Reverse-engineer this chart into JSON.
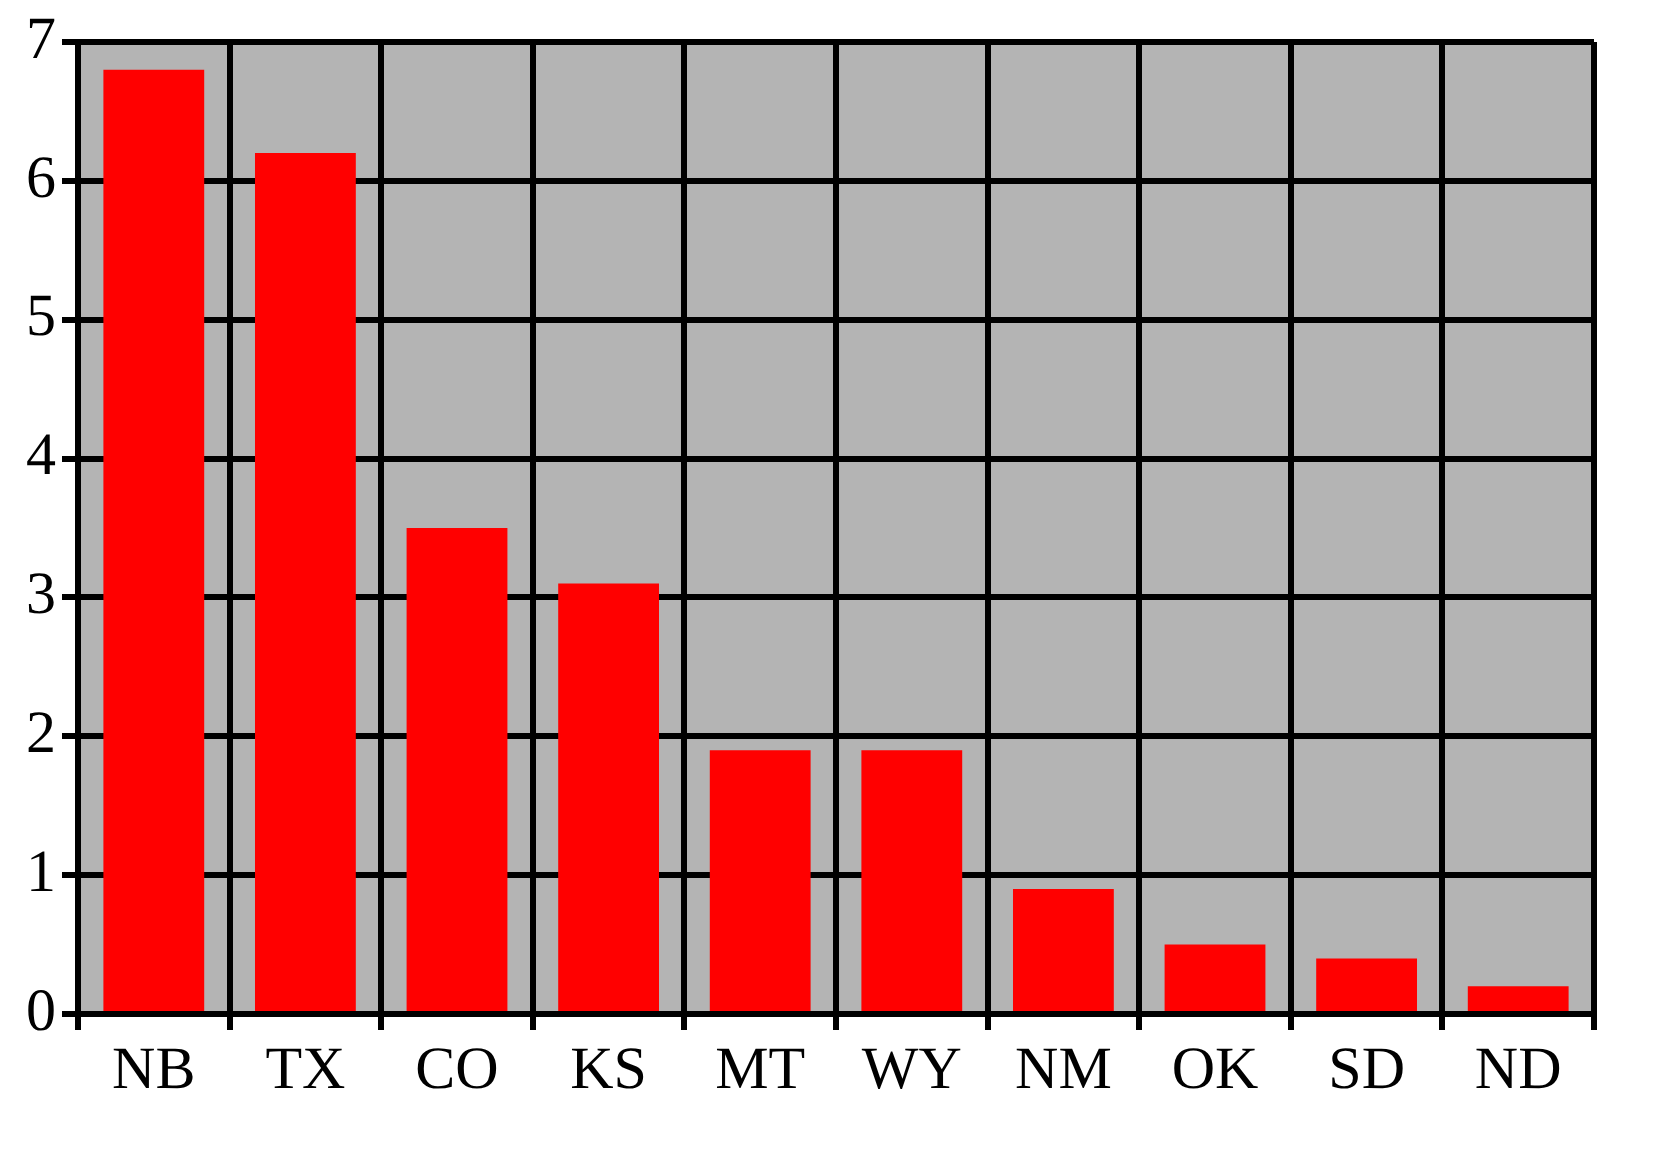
{
  "chart_data": {
    "type": "bar",
    "categories": [
      "NB",
      "TX",
      "CO",
      "KS",
      "MT",
      "WY",
      "NM",
      "OK",
      "SD",
      "ND"
    ],
    "values": [
      6.8,
      6.2,
      3.5,
      3.1,
      1.9,
      1.9,
      0.9,
      0.5,
      0.4,
      0.2
    ],
    "color": "#ff0000",
    "ylim": [
      0,
      7
    ],
    "yticks": [
      0,
      1,
      2,
      3,
      4,
      5,
      6,
      7
    ],
    "grid": true
  }
}
